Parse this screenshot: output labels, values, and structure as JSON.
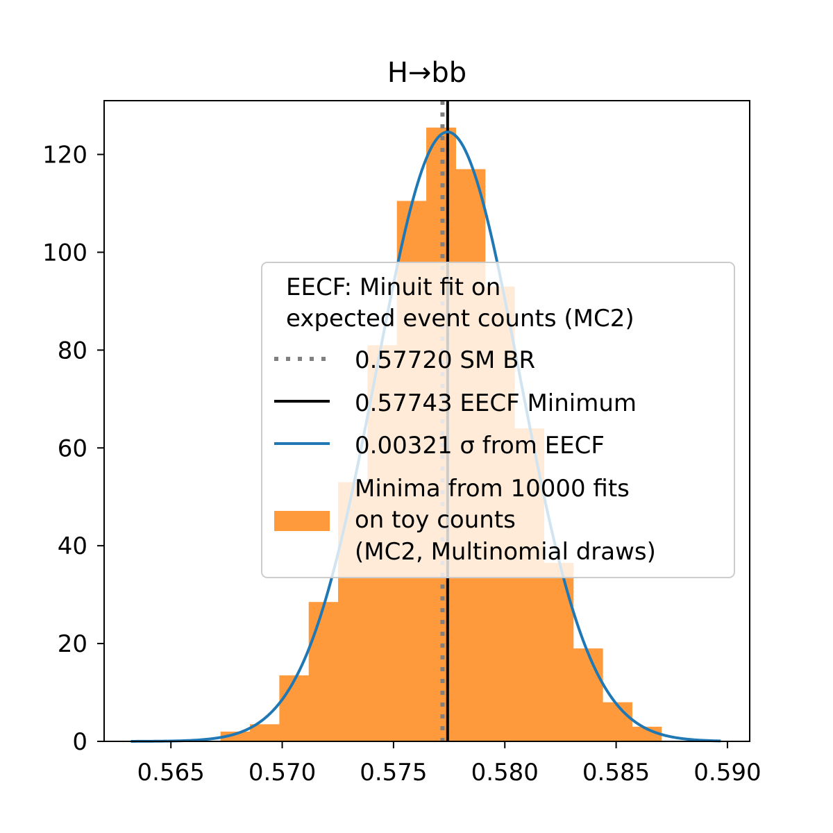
{
  "chart_data": {
    "type": "histogram",
    "title": "H→bb",
    "xlabel": "",
    "ylabel": "",
    "xlim": [
      0.562,
      0.591
    ],
    "ylim": [
      0,
      131
    ],
    "xticks": [
      "0.565",
      "0.570",
      "0.575",
      "0.580",
      "0.585",
      "0.590"
    ],
    "yticks": [
      "0",
      "20",
      "40",
      "60",
      "80",
      "100",
      "120"
    ],
    "grid": false,
    "legend_placement": "center-right",
    "histogram": {
      "label_lines": [
        "Minima from 10000 fits",
        "on toy counts",
        "(MC2, Multinomial draws)"
      ],
      "color": "#ff9a3c",
      "bin_edges": [
        0.56723,
        0.56855,
        0.56987,
        0.57119,
        0.57251,
        0.57383,
        0.57515,
        0.57647,
        0.57779,
        0.57911,
        0.58043,
        0.58175,
        0.58307,
        0.58439,
        0.58571,
        0.58703
      ],
      "counts": [
        2,
        3.5,
        13.5,
        28.5,
        53,
        81,
        110.5,
        125.5,
        117,
        93,
        64,
        36.5,
        19,
        8,
        3
      ]
    },
    "sm_line": {
      "x": 0.5772,
      "label": "0.57720 SM BR",
      "color": "#808080"
    },
    "min_line": {
      "x": 0.57743,
      "label": "0.57743 EECF Minimum",
      "color": "#000000"
    },
    "gaussian": {
      "mean": 0.57743,
      "sigma": 0.00321,
      "peak": 124.6,
      "x_range": [
        0.5632,
        0.5897
      ],
      "label": "0.00321 σ from EECF",
      "color": "#1f77b4"
    },
    "legend": {
      "title_lines": [
        "EECF: Minuit fit on",
        "expected event counts (MC2)"
      ]
    }
  }
}
